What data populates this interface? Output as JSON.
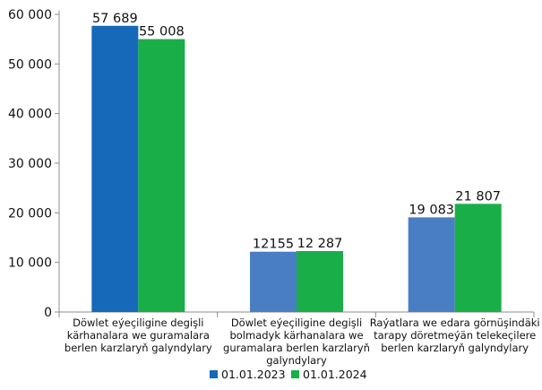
{
  "chart_data": {
    "type": "bar",
    "categories": [
      [
        "Döwlet eýeçiligine degişli",
        "kärhanalara we guramalara",
        "berlen karzlaryň galyndylary"
      ],
      [
        "Döwlet eýeçiligine degişli",
        "bolmadyk kärhanalara we",
        "guramalara berlen karzlaryň",
        "galyndylary"
      ],
      [
        "Raýatlara we edara görnüşindäki",
        "tarapy döretmeýän telekeçilere",
        "berlen karzlaryň galyndylary"
      ]
    ],
    "series": [
      {
        "name": "01.01.2023",
        "values": [
          57689,
          12155,
          19083
        ],
        "value_labels": [
          "57 689",
          "12155",
          "19 083"
        ],
        "colors": [
          "#1668b8",
          "#4a7ec4",
          "#4a7ec4"
        ]
      },
      {
        "name": "01.01.2024",
        "values": [
          55008,
          12287,
          21807
        ],
        "value_labels": [
          "55 008",
          "12 287",
          "21 807"
        ],
        "colors": [
          "#1aae49",
          "#1aae49",
          "#1aae49"
        ]
      }
    ],
    "legend_colors": [
      "#1668b8",
      "#1aae49"
    ],
    "ylim": [
      0,
      60000
    ],
    "yticks": [
      0,
      10000,
      20000,
      30000,
      40000,
      50000,
      60000
    ],
    "ytick_labels": [
      "0",
      "10 000",
      "20 000",
      "30 000",
      "40 000",
      "50 000",
      "60 000"
    ],
    "grid": false,
    "legend_position": "bottom"
  }
}
